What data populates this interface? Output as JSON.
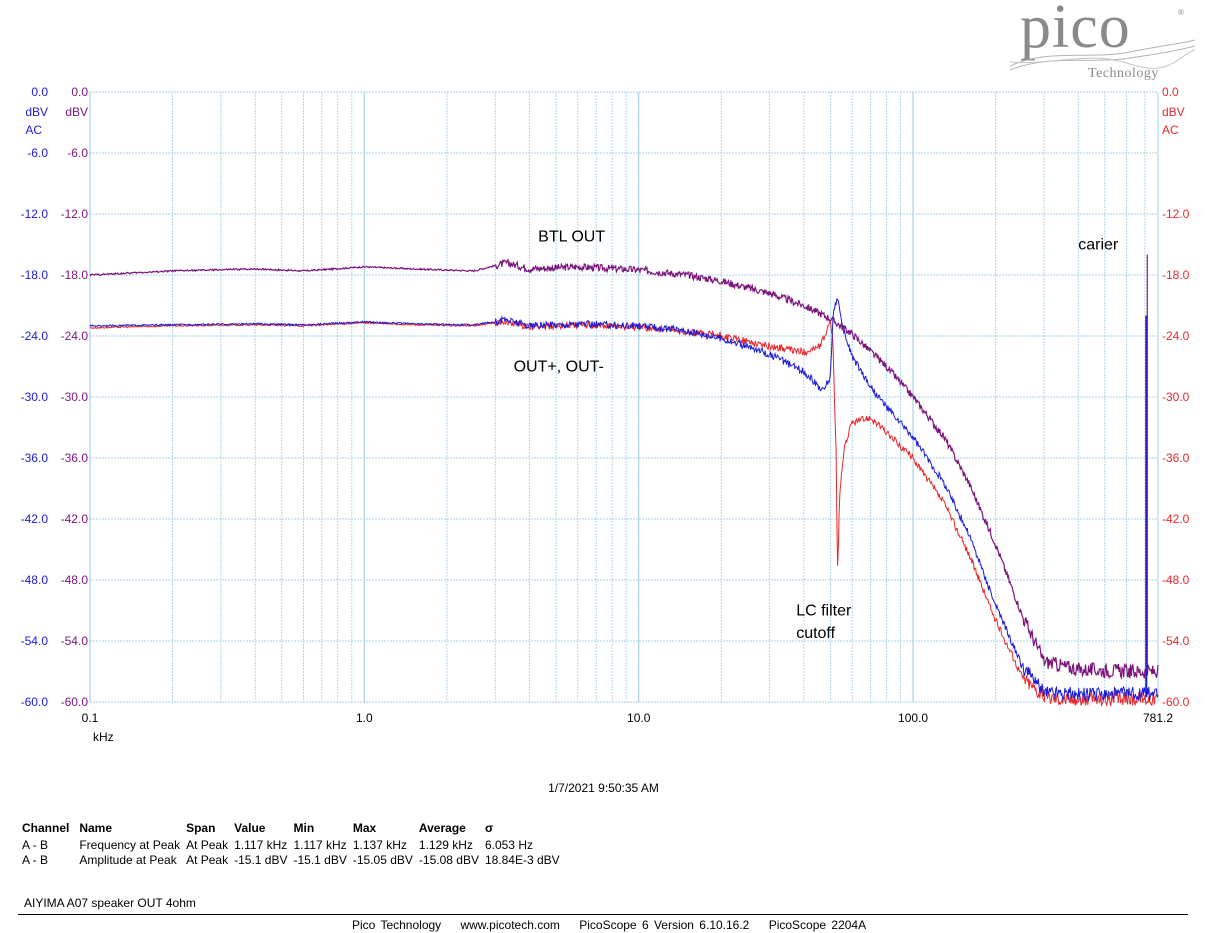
{
  "brand": {
    "name": "pico",
    "sub": "Technology",
    "reg": "®"
  },
  "chart_data": {
    "type": "line",
    "xscale": "log",
    "xlim": [
      0.1,
      781.2
    ],
    "ylim": [
      -60,
      0
    ],
    "grid": true,
    "xunit": "kHz",
    "xticks": [
      "0.1",
      "1.0",
      "10.0",
      "100.0",
      "781.2"
    ],
    "yticks_left_a": [
      "0.0",
      "-6.0",
      "-12.0",
      "-18.0",
      "-24.0",
      "-30.0",
      "-36.0",
      "-42.0",
      "-48.0",
      "-54.0",
      "-60.0"
    ],
    "yticks_left_b": [
      "0.0",
      "-6.0",
      "-12.0",
      "-18.0",
      "-24.0",
      "-30.0",
      "-36.0",
      "-42.0",
      "-48.0",
      "-54.0",
      "-60.0"
    ],
    "yticks_right": [
      "0.0",
      "",
      "-12.0",
      "-18.0",
      "-24.0",
      "-30.0",
      "-36.0",
      "-42.0",
      "-48.0",
      "-54.0",
      "-60.0"
    ],
    "unit_left_a": "dBV",
    "coupling_left_a": "AC",
    "unit_left_b": "dBV",
    "unit_right": "dBV",
    "coupling_right": "AC",
    "colors": {
      "blue": "#1a1adc",
      "purple": "#7b147b",
      "red": "#e8282c",
      "grid": "#a8d2e8"
    },
    "series": [
      {
        "color": "purple",
        "x": [
          0.1,
          0.2,
          0.4,
          0.6,
          1.0,
          1.5,
          2.5,
          3.3,
          4,
          6,
          10,
          15,
          20,
          30,
          40,
          50,
          60,
          80,
          100,
          130,
          160,
          200,
          250,
          300,
          400,
          500,
          650,
          781.2
        ],
        "y": [
          -18.0,
          -17.6,
          -17.4,
          -17.6,
          -17.2,
          -17.4,
          -17.6,
          -16.8,
          -17.4,
          -17.2,
          -17.5,
          -18.0,
          -18.6,
          -19.8,
          -21.0,
          -22.3,
          -23.8,
          -27.0,
          -30.0,
          -34.0,
          -38.5,
          -44.5,
          -51.5,
          -56.0,
          -56.8,
          -56.9,
          -57.0,
          -57.0
        ]
      },
      {
        "color": "blue",
        "x": [
          0.1,
          0.2,
          0.4,
          0.6,
          1.0,
          1.5,
          2.5,
          3.3,
          4,
          6,
          10,
          15,
          20,
          30,
          40,
          47,
          50,
          51,
          53,
          55,
          60,
          70,
          80,
          100,
          130,
          160,
          200,
          250,
          300,
          400,
          500,
          781.2
        ],
        "y": [
          -23.0,
          -22.9,
          -22.8,
          -22.9,
          -22.6,
          -22.8,
          -22.9,
          -22.4,
          -23.0,
          -22.8,
          -23.0,
          -23.5,
          -24.2,
          -25.8,
          -27.5,
          -29.4,
          -28.0,
          -22.0,
          -20.0,
          -23.0,
          -26.0,
          -29.0,
          -31.0,
          -34.0,
          -38.5,
          -43.5,
          -50.5,
          -56.5,
          -59.0,
          -59.2,
          -59.2,
          -59.2
        ]
      },
      {
        "color": "red",
        "x": [
          0.1,
          0.2,
          0.4,
          0.6,
          1.0,
          1.5,
          2.5,
          3.3,
          4,
          6,
          10,
          15,
          20,
          30,
          40,
          46,
          50,
          51,
          52.5,
          53,
          54,
          56,
          60,
          70,
          80,
          100,
          130,
          160,
          200,
          250,
          300,
          400,
          500,
          781.2
        ],
        "y": [
          -23.2,
          -23.0,
          -22.9,
          -23.0,
          -22.7,
          -22.9,
          -23.0,
          -22.6,
          -23.1,
          -22.9,
          -23.1,
          -23.6,
          -24.0,
          -25.0,
          -25.6,
          -25.0,
          -22.5,
          -24.5,
          -36.0,
          -47.5,
          -40.0,
          -35.0,
          -32.5,
          -32.0,
          -33.5,
          -36.0,
          -40.5,
          -45.5,
          -52.0,
          -57.5,
          -59.5,
          -59.8,
          -59.7,
          -59.6
        ]
      }
    ],
    "carrier_x": 708,
    "carrier_levels": {
      "purple": -16.0,
      "blue": -22.0
    },
    "annotations": [
      {
        "text": "BTL OUT",
        "x": 4.3,
        "y": -14.7
      },
      {
        "text": "OUT+, OUT-",
        "x": 3.5,
        "y": -27.5
      },
      {
        "text": "carier",
        "x": 400,
        "y": -15.5
      },
      {
        "text": "LC filter",
        "x": 37.5,
        "y": -51.5
      },
      {
        "text": "cutoff",
        "x": 37.5,
        "y": -53.7
      }
    ]
  },
  "timestamp": "1/7/2021 9:50:35 AM",
  "measurements": {
    "headers": [
      "Channel",
      "Name",
      "Span",
      "Value",
      "Min",
      "Max",
      "Average",
      "σ"
    ],
    "rows": [
      [
        "A - B",
        "Frequency at Peak",
        "At Peak",
        "1.117 kHz",
        "1.117 kHz",
        "1.137 kHz",
        "1.129 kHz",
        "6.053 Hz"
      ],
      [
        "A - B",
        "Amplitude at Peak",
        "At Peak",
        "-15.1 dBV",
        "-15.1 dBV",
        "-15.05 dBV",
        "-15.08 dBV",
        "18.84E-3 dBV"
      ]
    ]
  },
  "note": "AIYIMA A07 speaker OUT 4ohm",
  "footer": {
    "company": "Pico Technology",
    "url": "www.picotech.com",
    "version": "PicoScope 6 Version 6.10.16.2",
    "device": "PicoScope 2204A"
  }
}
